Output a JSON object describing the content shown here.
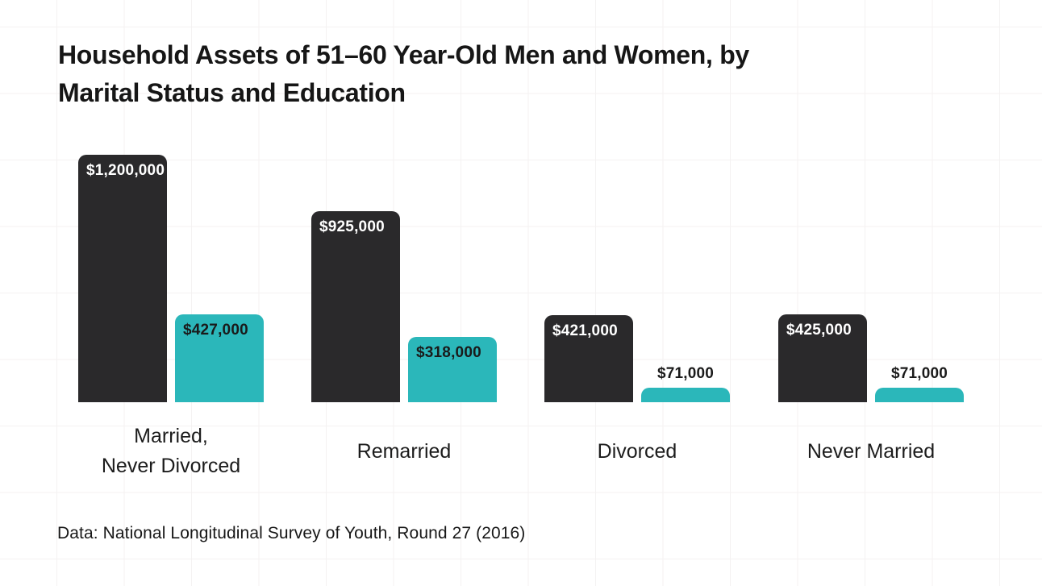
{
  "colors": {
    "background": "#ffffff",
    "grid": "#f4f2f2",
    "bar_dark": "#2a292b",
    "bar_teal": "#2bb7ba",
    "text": "#1a1a1a",
    "label_on_dark": "#ffffff"
  },
  "title": {
    "lines": [
      "Household Assets of 51–60 Year-Old Men and Women, by",
      "Marital Status and Education"
    ]
  },
  "footer": {
    "text": "Data: National Longitudinal Survey of Youth, Round 27 (2016)"
  },
  "chart_data": {
    "type": "bar",
    "title": "Household Assets of 51–60 Year-Old Men and Women, by Marital Status and Education",
    "source_note": "Data: National Longitudinal Survey of Youth, Round 27 (2016)",
    "categories": [
      "Married, Never Divorced",
      "Remarried",
      "Divorced",
      "Never Married"
    ],
    "category_label_lines": [
      [
        "Married,",
        "Never Divorced"
      ],
      [
        "Remarried"
      ],
      [
        "Divorced"
      ],
      [
        "Never Married"
      ]
    ],
    "series": [
      {
        "name": "series-1-dark",
        "color": "#2a292b",
        "label_color": "#ffffff",
        "values": [
          1200000,
          925000,
          421000,
          425000
        ],
        "value_labels": [
          "$1,200,000",
          "$925,000",
          "$421,000",
          "$425,000"
        ]
      },
      {
        "name": "series-2-teal",
        "color": "#2bb7ba",
        "label_color": "#1a1a1a",
        "values": [
          427000,
          318000,
          71000,
          71000
        ],
        "value_labels": [
          "$427,000",
          "$318,000",
          "$71,000",
          "$71,000"
        ]
      }
    ],
    "ylim": [
      0,
      1200000
    ],
    "grid": true,
    "legend": "none",
    "value_label_position_rule": "inside-top unless bar too short, then above"
  }
}
